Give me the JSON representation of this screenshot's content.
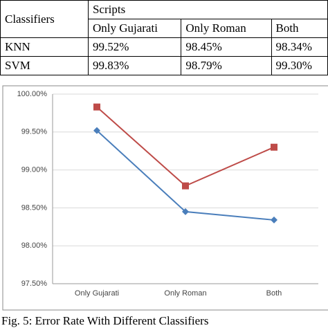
{
  "table": {
    "header": {
      "row_label": "Classifiers",
      "group": "Scripts",
      "columns": [
        "Only Gujarati",
        "Only Roman",
        "Both"
      ]
    },
    "rows": [
      [
        "KNN",
        "99.52%",
        "98.45%",
        "98.34%"
      ],
      [
        "SVM",
        "99.83%",
        "98.79%",
        "99.30%"
      ]
    ]
  },
  "chart_data": {
    "type": "line",
    "categories": [
      "Only Gujarati",
      "Only Roman",
      "Both"
    ],
    "series": [
      {
        "color": "#4a7ebb",
        "marker": "diamond",
        "values": [
          99.52,
          98.45,
          98.34
        ]
      },
      {
        "color": "#be4b48",
        "marker": "square",
        "values": [
          99.83,
          98.79,
          99.3
        ]
      }
    ],
    "ylim": [
      97.5,
      100
    ],
    "yticks": [
      {
        "value": 97.5,
        "label": "97.50%"
      },
      {
        "value": 98,
        "label": "98.00%"
      },
      {
        "value": 98.5,
        "label": "98.50%"
      },
      {
        "value": 99,
        "label": "99.00%"
      },
      {
        "value": 99.5,
        "label": "99.50%"
      },
      {
        "value": 100,
        "label": "100.00%"
      }
    ],
    "grid": true
  },
  "caption": "Fig. 5: Error Rate With Different Classifiers"
}
